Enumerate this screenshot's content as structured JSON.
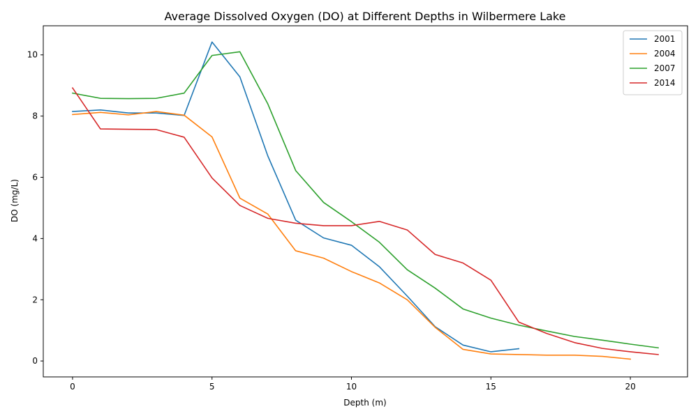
{
  "chart_data": {
    "type": "line",
    "title": "Average Dissolved Oxygen (DO) at Different Depths in Wilbermere Lake",
    "xlabel": "Depth (m)",
    "ylabel": "DO (mg/L)",
    "xlim": [
      -1.05,
      22.05
    ],
    "ylim": [
      -0.52,
      10.95
    ],
    "xticks": [
      0,
      5,
      10,
      15,
      20
    ],
    "yticks": [
      0,
      2,
      4,
      6,
      8,
      10
    ],
    "grid": false,
    "legend_position": "top-right",
    "series": [
      {
        "name": "2001",
        "color": "#1f77b4",
        "x": [
          0,
          1,
          2,
          3,
          4,
          5,
          6,
          7,
          8,
          9,
          10,
          11,
          12,
          13,
          14,
          15,
          16
        ],
        "y": [
          8.15,
          8.2,
          8.1,
          8.1,
          8.02,
          10.42,
          9.28,
          6.7,
          4.6,
          4.02,
          3.78,
          3.08,
          2.12,
          1.12,
          0.52,
          0.3,
          0.4
        ]
      },
      {
        "name": "2004",
        "color": "#ff7f0e",
        "x": [
          0,
          1,
          2,
          3,
          4,
          5,
          6,
          7,
          8,
          9,
          10,
          11,
          12,
          13,
          14,
          15,
          16,
          17,
          18,
          19,
          20
        ],
        "y": [
          8.05,
          8.12,
          8.04,
          8.15,
          8.03,
          7.32,
          5.32,
          4.8,
          3.6,
          3.36,
          2.92,
          2.55,
          2.0,
          1.1,
          0.38,
          0.23,
          0.21,
          0.19,
          0.19,
          0.15,
          0.06
        ]
      },
      {
        "name": "2007",
        "color": "#2ca02c",
        "x": [
          0,
          1,
          2,
          3,
          4,
          5,
          6,
          7,
          8,
          9,
          10,
          11,
          12,
          13,
          14,
          15,
          16,
          17,
          18,
          19,
          20,
          21
        ],
        "y": [
          8.75,
          8.58,
          8.57,
          8.58,
          8.75,
          9.98,
          10.1,
          8.4,
          6.22,
          5.18,
          4.55,
          3.88,
          2.98,
          2.38,
          1.7,
          1.4,
          1.17,
          0.98,
          0.8,
          0.68,
          0.55,
          0.43
        ]
      },
      {
        "name": "2014",
        "color": "#d62728",
        "x": [
          0,
          1,
          2,
          3,
          4,
          5,
          6,
          7,
          8,
          9,
          10,
          11,
          12,
          13,
          14,
          15,
          16,
          17,
          18,
          19,
          20,
          21
        ],
        "y": [
          8.92,
          7.58,
          7.57,
          7.56,
          7.31,
          5.98,
          5.08,
          4.66,
          4.5,
          4.42,
          4.42,
          4.56,
          4.28,
          3.48,
          3.2,
          2.64,
          1.27,
          0.9,
          0.6,
          0.41,
          0.3,
          0.21
        ]
      }
    ]
  }
}
